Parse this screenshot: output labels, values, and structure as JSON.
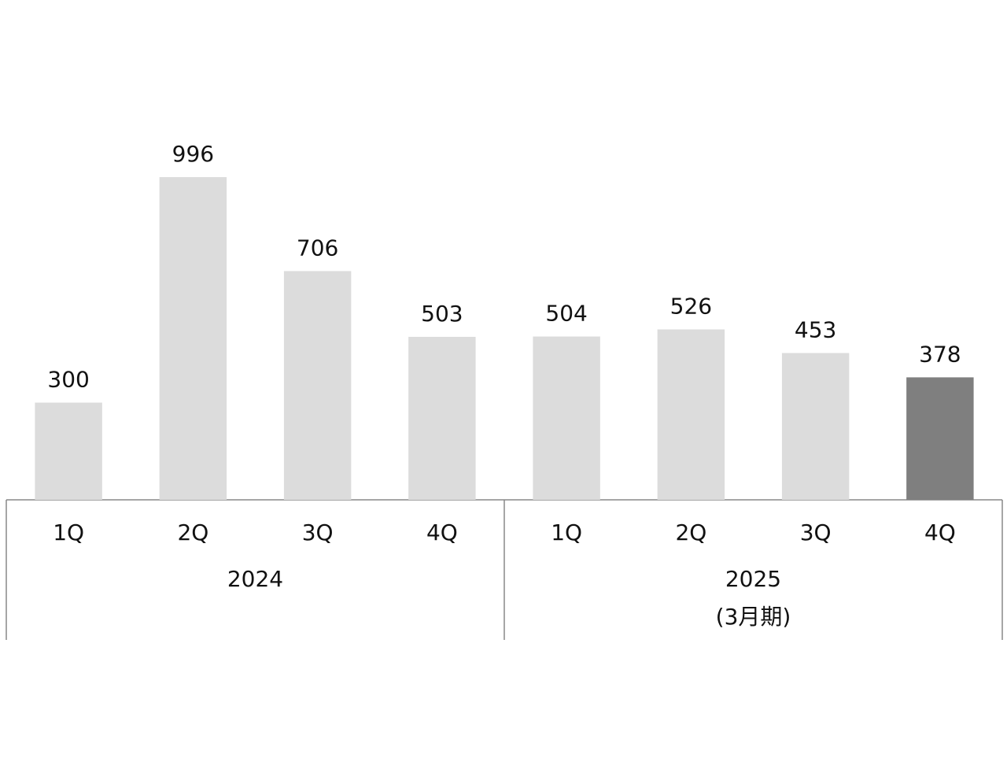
{
  "chart_data": {
    "type": "bar",
    "groups": [
      {
        "name": "2024",
        "categories": [
          "1Q",
          "2Q",
          "3Q",
          "4Q"
        ],
        "values": [
          300,
          996,
          706,
          503
        ],
        "colors": [
          "#dcdcdc",
          "#dcdcdc",
          "#dcdcdc",
          "#dcdcdc"
        ]
      },
      {
        "name": "2025",
        "note": "(3月期)",
        "categories": [
          "1Q",
          "2Q",
          "3Q",
          "4Q"
        ],
        "values": [
          504,
          526,
          453,
          378
        ],
        "colors": [
          "#dcdcdc",
          "#dcdcdc",
          "#dcdcdc",
          "#7f7f7f"
        ]
      }
    ]
  }
}
